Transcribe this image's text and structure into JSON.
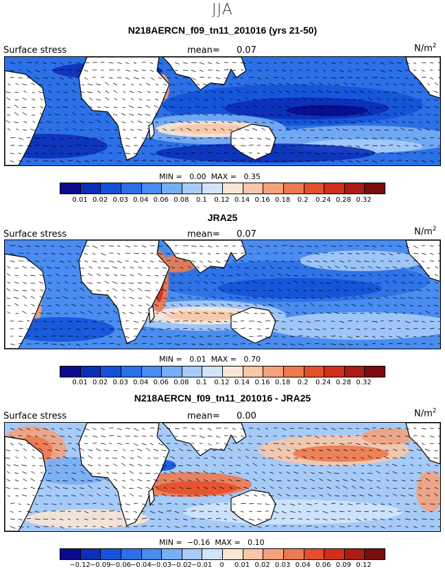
{
  "figure": {
    "season": "JJA"
  },
  "colorbar": {
    "colors": [
      "#0a0a8c",
      "#0b2fb8",
      "#1453d9",
      "#2c70e8",
      "#4a8cf0",
      "#78aef5",
      "#a6cbf8",
      "#d2e4fb",
      "#fbe6d4",
      "#f8c6a8",
      "#f3a27d",
      "#ec7a50",
      "#e4502c",
      "#d22e1c",
      "#ab1c14",
      "#7a0c0c"
    ]
  },
  "chart_data": [
    {
      "type": "heatmap",
      "title": "N218AERCN_f09_tn11_201016 (yrs 21-50)",
      "variable_label": "Surface stress",
      "mean_label": "mean=",
      "mean_value": "0.07",
      "units_base": "N/m",
      "units_exp": "2",
      "min_label": "MIN =",
      "min_value": "0.00",
      "max_label": "MAX =",
      "max_value": "0.35",
      "colorbar_ticks": [
        "0.01",
        "0.02",
        "0.03",
        "0.04",
        "0.06",
        "0.08",
        "0.1",
        "0.12",
        "0.14",
        "0.16",
        "0.18",
        "0.2",
        "0.24",
        "0.28",
        "0.32"
      ]
    },
    {
      "type": "heatmap",
      "title": "JRA25",
      "variable_label": "Surface stress",
      "mean_label": "mean=",
      "mean_value": "0.07",
      "units_base": "N/m",
      "units_exp": "2",
      "min_label": "MIN =",
      "min_value": "0.01",
      "max_label": "MAX =",
      "max_value": "0.70",
      "colorbar_ticks": [
        "0.01",
        "0.02",
        "0.03",
        "0.04",
        "0.06",
        "0.08",
        "0.1",
        "0.12",
        "0.14",
        "0.16",
        "0.18",
        "0.2",
        "0.24",
        "0.28",
        "0.32"
      ]
    },
    {
      "type": "heatmap",
      "title": "N218AERCN_f09_tn11_201016 - JRA25",
      "variable_label": "Surface stress",
      "mean_label": "mean=",
      "mean_value": "0.00",
      "units_base": "N/m",
      "units_exp": "2",
      "min_label": "MIN =",
      "min_value": "−0.16",
      "max_label": "MAX =",
      "max_value": "0.10",
      "colorbar_ticks": [
        "−0.12",
        "−0.09",
        "−0.06",
        "−0.04",
        "−0.03",
        "−0.02",
        "−0.01",
        "0",
        "0.01",
        "0.02",
        "0.03",
        "0.04",
        "0.06",
        "0.09",
        "0.12"
      ]
    }
  ]
}
